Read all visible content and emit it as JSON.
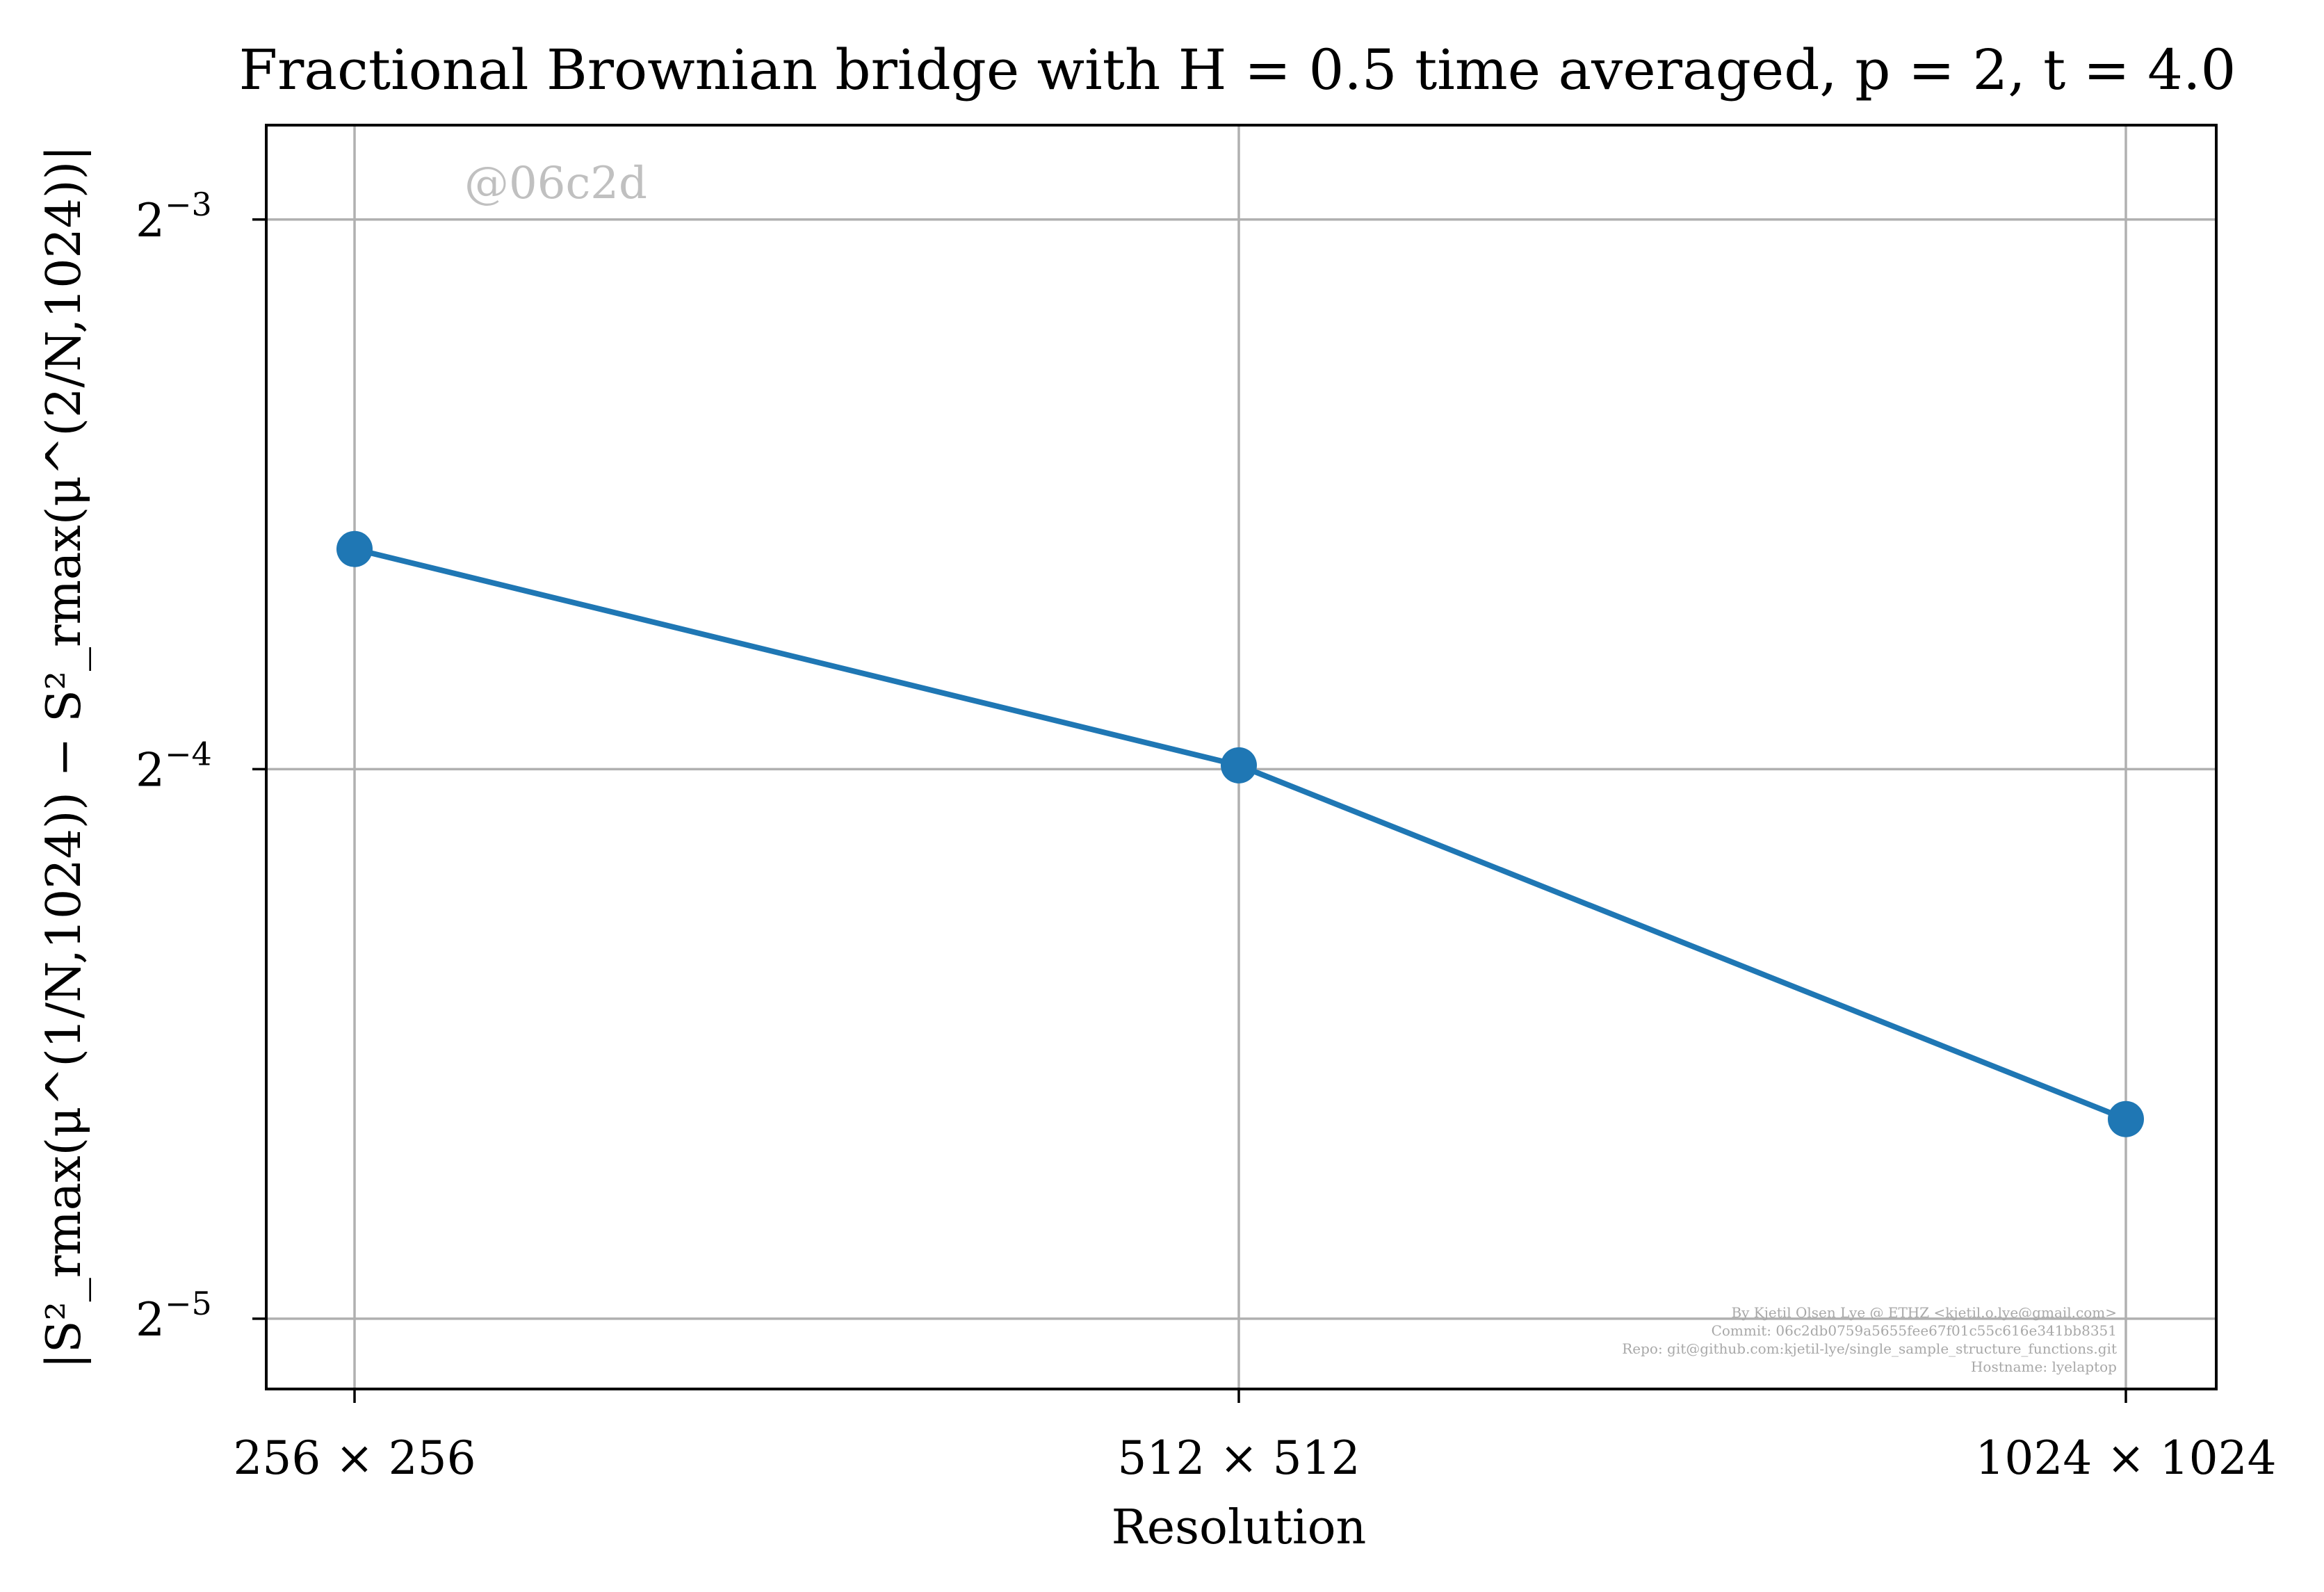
{
  "chart_data": {
    "type": "line",
    "title": "Fractional Brownian bridge with H = 0.5 time averaged, p = 2, t = 4.0",
    "xlabel": "Resolution",
    "ylabel": "|S²_rmax(μ^(1/N,1024)) − S²_rmax(μ^(2/N,1024))|",
    "y_scale": "log2",
    "ylim": [
      0.0286,
      0.1408
    ],
    "grid": true,
    "categories": [
      "256 × 256",
      "512 × 512",
      "1024 × 1024"
    ],
    "y_ticks": [
      {
        "value": 0.125,
        "base": "2",
        "exponent": "−3"
      },
      {
        "value": 0.0625,
        "base": "2",
        "exponent": "−4"
      },
      {
        "value": 0.03125,
        "base": "2",
        "exponent": "−5"
      }
    ],
    "series": [
      {
        "values": [
          0.0825,
          0.0628,
          0.0402
        ],
        "color": "#1f77b4"
      }
    ],
    "watermark": "@06c2d",
    "credits": [
      "By Kjetil Olsen Lye @ ETHZ <kjetil.o.lye@gmail.com>",
      "Commit: 06c2db0759a5655fee67f01c55c616e341bb8351",
      "Repo: git@github.com:kjetil-lye/single_sample_structure_functions.git",
      "Hostname: lyelaptop"
    ]
  }
}
